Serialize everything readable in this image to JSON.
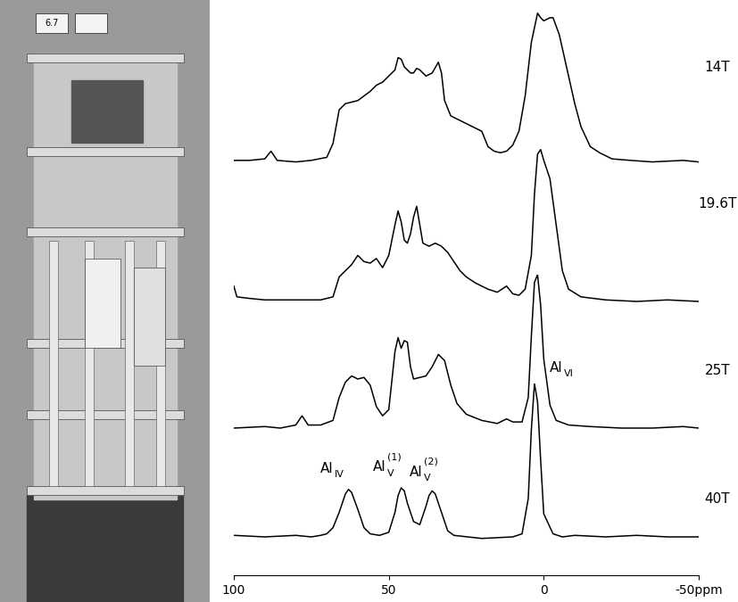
{
  "photo": {
    "label": "6.7"
  },
  "chart_data": [
    {
      "type": "line",
      "xlim": [
        100,
        -50
      ],
      "ylim": [
        -25,
        100
      ],
      "tick_labels": false,
      "series": [
        {
          "name": "14T",
          "color": "#000000",
          "x": [
            100,
            95,
            90,
            88,
            86,
            80,
            75,
            70,
            68,
            66,
            64,
            62,
            60,
            58,
            56,
            54,
            52,
            50,
            48,
            47,
            46,
            45,
            44,
            43,
            42,
            41,
            40,
            38,
            36,
            34,
            33,
            32,
            30,
            28,
            26,
            24,
            22,
            20,
            18,
            16,
            14,
            12,
            10,
            8,
            6,
            4,
            2,
            1,
            0,
            -2,
            -3,
            -5,
            -8,
            -10,
            -12,
            -15,
            -18,
            -22,
            -28,
            -35,
            -45,
            -50
          ],
          "values": [
            3,
            3,
            4,
            9,
            3,
            2,
            3,
            5,
            14,
            36,
            40,
            41,
            42,
            45,
            48,
            52,
            54,
            58,
            62,
            70,
            69,
            64,
            62,
            60,
            60,
            63,
            62,
            58,
            60,
            67,
            60,
            42,
            32,
            30,
            28,
            26,
            24,
            22,
            12,
            9,
            8,
            9,
            13,
            22,
            45,
            80,
            99,
            96,
            94,
            96,
            96,
            85,
            58,
            40,
            25,
            12,
            8,
            4,
            3,
            2,
            3,
            2
          ]
        }
      ]
    },
    {
      "type": "line",
      "xlim": [
        100,
        -50
      ],
      "ylim": [
        -25,
        100
      ],
      "tick_labels": false,
      "series": [
        {
          "name": "19.6T",
          "color": "#000000",
          "x": [
            100,
            99,
            95,
            90,
            80,
            72,
            68,
            66,
            64,
            62,
            60,
            58,
            56,
            54,
            52,
            50,
            48,
            47,
            46,
            45,
            44,
            43,
            42,
            41,
            40,
            39,
            37,
            35,
            33,
            31,
            29,
            27,
            25,
            22,
            18,
            15,
            12,
            10,
            8,
            6,
            4,
            3,
            2,
            1,
            0,
            -2,
            -4,
            -6,
            -8,
            -12,
            -20,
            -30,
            -40,
            -50
          ],
          "values": [
            10,
            3,
            2,
            1,
            1,
            1,
            3,
            16,
            20,
            24,
            30,
            26,
            25,
            28,
            22,
            30,
            50,
            59,
            52,
            40,
            38,
            44,
            55,
            62,
            50,
            38,
            36,
            38,
            36,
            32,
            26,
            20,
            16,
            12,
            8,
            6,
            10,
            5,
            4,
            8,
            30,
            70,
            96,
            99,
            92,
            80,
            50,
            20,
            8,
            3,
            1,
            0,
            1,
            0
          ]
        }
      ]
    },
    {
      "type": "line",
      "xlim": [
        100,
        -50
      ],
      "ylim": [
        -25,
        100
      ],
      "tick_labels": false,
      "series": [
        {
          "name": "25T",
          "color": "#000000",
          "x": [
            100,
            90,
            85,
            80,
            78,
            76,
            72,
            68,
            66,
            64,
            62,
            60,
            58,
            56,
            54,
            52,
            50,
            48,
            47,
            46,
            45,
            44,
            43,
            42,
            40,
            38,
            36,
            34,
            32,
            30,
            28,
            25,
            20,
            15,
            12,
            10,
            7,
            5,
            4,
            3,
            2,
            1,
            0,
            -2,
            -4,
            -8,
            -15,
            -25,
            -35,
            -45,
            -50
          ],
          "values": [
            0,
            1,
            0,
            2,
            8,
            2,
            2,
            5,
            20,
            30,
            34,
            32,
            33,
            28,
            14,
            8,
            12,
            50,
            59,
            52,
            57,
            56,
            40,
            32,
            33,
            34,
            40,
            48,
            44,
            28,
            16,
            9,
            5,
            3,
            6,
            4,
            4,
            20,
            60,
            95,
            100,
            80,
            45,
            15,
            5,
            2,
            1,
            0,
            0,
            1,
            0
          ]
        }
      ]
    },
    {
      "type": "line",
      "xlim": [
        100,
        -50
      ],
      "ylim": [
        -25,
        100
      ],
      "tick_labels": "x",
      "xticks": [
        100,
        50,
        0,
        {
          "value": -50,
          "label": "-50ppm"
        }
      ],
      "series": [
        {
          "name": "40T",
          "color": "#000000",
          "x": [
            100,
            90,
            80,
            75,
            72,
            70,
            68,
            66,
            64,
            63,
            62,
            60,
            58,
            56,
            53,
            50,
            48,
            47,
            46,
            45,
            44,
            42,
            40,
            38,
            37,
            36,
            35,
            33,
            31,
            29,
            20,
            10,
            7,
            5,
            4,
            3,
            2,
            1,
            0,
            -3,
            -6,
            -10,
            -20,
            -30,
            -40,
            -50
          ],
          "values": [
            1,
            0,
            1,
            0,
            1,
            2,
            6,
            16,
            28,
            31,
            29,
            18,
            6,
            2,
            1,
            3,
            16,
            27,
            32,
            30,
            22,
            10,
            8,
            20,
            27,
            30,
            28,
            16,
            4,
            1,
            -1,
            0,
            2,
            25,
            70,
            100,
            88,
            50,
            15,
            2,
            0,
            1,
            0,
            1,
            0,
            0
          ]
        }
      ],
      "annotations": [
        {
          "text": "Al",
          "sub": "IV",
          "x": 68,
          "y": 40
        },
        {
          "text": "Al",
          "sub": "V",
          "sup": "(1)",
          "x": 51,
          "y": 41
        },
        {
          "text": "Al",
          "sub": "V",
          "sup": "(2)",
          "x": 39,
          "y": 38
        },
        {
          "text": "Al",
          "sub": "VI",
          "x": -6,
          "y": 106
        }
      ]
    }
  ]
}
